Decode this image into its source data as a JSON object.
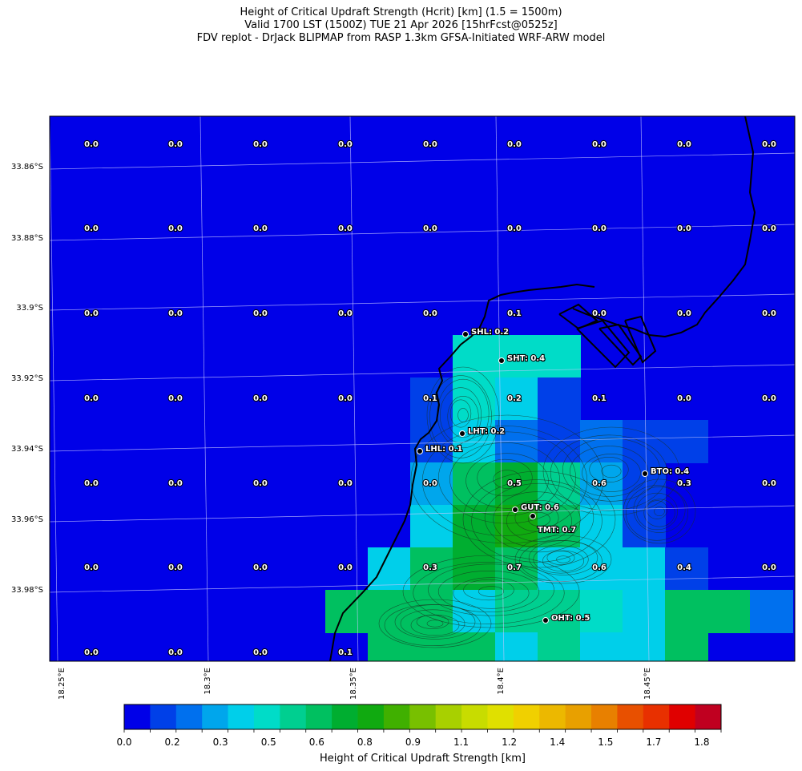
{
  "title": {
    "line1": "Height of Critical Updraft Strength (Hcrit) [km] (1.5 = 1500m)",
    "line2": "Valid 1700 LST (1500Z) TUE 21 Apr 2026 [15hrFcst@0525z]",
    "line3": "FDV replot - DrJack BLIPMAP from RASP 1.3km GFSA-Initiated WRF-ARW model"
  },
  "axes": {
    "lon_ticks": [
      "18.25°E",
      "18.3°E",
      "18.35°E",
      "18.4°E",
      "18.45°E"
    ],
    "lat_ticks": [
      "33.86°S",
      "33.88°S",
      "33.9°S",
      "33.92°S",
      "33.94°S",
      "33.96°S",
      "33.98°S"
    ]
  },
  "grid_values": [
    [
      "0.0",
      "0.0",
      "0.0",
      "0.0",
      "0.0",
      "0.0",
      "0.0",
      "0.0",
      "0.0"
    ],
    [
      "0.0",
      "0.0",
      "0.0",
      "0.0",
      "0.0",
      "0.0",
      "0.0",
      "0.0",
      "0.0"
    ],
    [
      "0.0",
      "0.0",
      "0.0",
      "0.0",
      "0.0",
      "0.1",
      "0.0",
      "0.0",
      "0.0"
    ],
    [
      "0.0",
      "0.0",
      "0.0",
      "0.0",
      "0.1",
      "0.2",
      "0.1",
      "0.0",
      "0.0"
    ],
    [
      "0.0",
      "0.0",
      "0.0",
      "0.0",
      "0.0",
      "0.5",
      "0.6",
      "0.3",
      "0.0"
    ],
    [
      "0.0",
      "0.0",
      "0.0",
      "0.0",
      "0.3",
      "0.7",
      "0.6",
      "0.4",
      "0.0"
    ],
    [
      "0.0",
      "0.0",
      "0.0",
      "0.1",
      "",
      "",
      "",
      "",
      ""
    ]
  ],
  "stations": [
    {
      "label": "SHL: 0.2"
    },
    {
      "label": "SHT: 0.4"
    },
    {
      "label": "LHT: 0.2"
    },
    {
      "label": "LHL: 0.1"
    },
    {
      "label": "BTO: 0.4"
    },
    {
      "label": "GUT: 0.6"
    },
    {
      "label": "TMT: 0.7"
    },
    {
      "label": "OHT: 0.5"
    }
  ],
  "colorbar": {
    "title": "Height of Critical Updraft Strength [km]",
    "tick_labels": [
      "0.0",
      "0.2",
      "0.3",
      "0.5",
      "0.6",
      "0.8",
      "0.9",
      "1.1",
      "1.2",
      "1.4",
      "1.5",
      "1.7",
      "1.8"
    ],
    "colors": [
      "#0000e8",
      "#0040e8",
      "#0070ee",
      "#00a6ec",
      "#00cfea",
      "#00dcc8",
      "#00cf90",
      "#00c060",
      "#00ae30",
      "#10aa10",
      "#40b000",
      "#78c000",
      "#a8d000",
      "#c8dc00",
      "#e0e000",
      "#f0d000",
      "#ecb800",
      "#e8a000",
      "#e88000",
      "#e85000",
      "#e83000",
      "#e00000",
      "#c00020"
    ]
  },
  "shading": {
    "background": "#0000e8",
    "cells": [
      {
        "c": "#00dcc8",
        "v": 0.4
      },
      {
        "c": "#00dcc8",
        "v": 0.4
      },
      {
        "c": "#00dcc8",
        "v": 0.4
      },
      {
        "c": "#0040e8",
        "v": 0.1
      },
      {
        "c": "#00dcc8",
        "v": 0.4
      },
      {
        "c": "#00cfea",
        "v": 0.3
      },
      {
        "c": "#0040e8",
        "v": 0.1
      },
      {
        "c": "#0040e8",
        "v": 0.1
      },
      {
        "c": "#00cfea",
        "v": 0.3
      },
      {
        "c": "#0070ee",
        "v": 0.2
      },
      {
        "c": "#0040e8",
        "v": 0.1
      },
      {
        "c": "#0070ee",
        "v": 0.2
      },
      {
        "c": "#0040e8",
        "v": 0.1
      },
      {
        "c": "#0040e8",
        "v": 0.1
      },
      {
        "c": "#00a6ec",
        "v": 0.3
      },
      {
        "c": "#00c060",
        "v": 0.6
      },
      {
        "c": "#00ae30",
        "v": 0.7
      },
      {
        "c": "#00cf90",
        "v": 0.5
      },
      {
        "c": "#00a6ec",
        "v": 0.3
      },
      {
        "c": "#0040e8",
        "v": 0.1
      },
      {
        "c": "#00cfea",
        "v": 0.3
      },
      {
        "c": "#00ae30",
        "v": 0.7
      },
      {
        "c": "#10aa10",
        "v": 0.8
      },
      {
        "c": "#00c060",
        "v": 0.6
      },
      {
        "c": "#00cfea",
        "v": 0.3
      },
      {
        "c": "#0040e8",
        "v": 0.1
      },
      {
        "c": "#00cfea",
        "v": 0.3
      },
      {
        "c": "#00c060",
        "v": 0.6
      },
      {
        "c": "#00ae30",
        "v": 0.7
      },
      {
        "c": "#00c060",
        "v": 0.6
      },
      {
        "c": "#00cfea",
        "v": 0.3
      },
      {
        "c": "#00cfea",
        "v": 0.4
      },
      {
        "c": "#00cfea",
        "v": 0.3
      },
      {
        "c": "#0040e8",
        "v": 0.1
      },
      {
        "c": "#00c060",
        "v": 0.6
      },
      {
        "c": "#00c060",
        "v": 0.6
      },
      {
        "c": "#00c060",
        "v": 0.6
      },
      {
        "c": "#00cfea",
        "v": 0.4
      },
      {
        "c": "#00cf90",
        "v": 0.5
      },
      {
        "c": "#00cf90",
        "v": 0.5
      },
      {
        "c": "#00dcc8",
        "v": 0.4
      },
      {
        "c": "#00cfea",
        "v": 0.3
      },
      {
        "c": "#00c060",
        "v": 0.6
      },
      {
        "c": "#00c060",
        "v": 0.6
      },
      {
        "c": "#0070ee",
        "v": 0.2
      },
      {
        "c": "#00c060",
        "v": 0.6
      },
      {
        "c": "#00c060",
        "v": 0.6
      }
    ]
  }
}
